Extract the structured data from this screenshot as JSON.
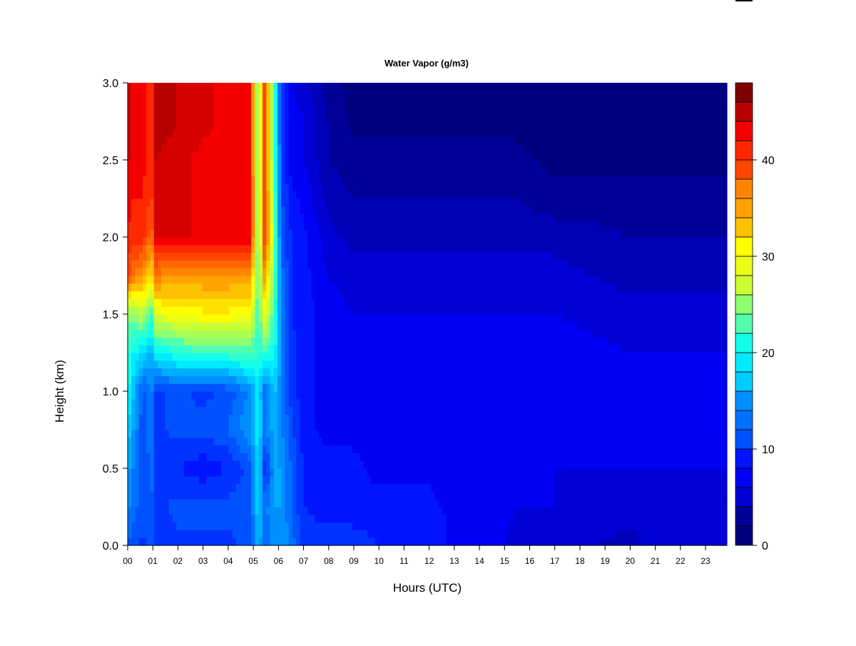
{
  "chart_data": {
    "type": "heatmap",
    "title": "Water Vapor (g/m3)",
    "xlabel": "Hours (UTC)",
    "ylabel": "Height (km)",
    "xlim": [
      0,
      23.85
    ],
    "ylim": [
      0,
      3.0
    ],
    "x_ticks": [
      "00",
      "01",
      "02",
      "03",
      "04",
      "05",
      "06",
      "07",
      "08",
      "09",
      "10",
      "11",
      "12",
      "13",
      "14",
      "15",
      "16",
      "17",
      "18",
      "19",
      "20",
      "21",
      "22",
      "23"
    ],
    "y_ticks": [
      "0.0",
      "0.5",
      "1.0",
      "1.5",
      "2.0",
      "2.5",
      "3.0"
    ],
    "colorbar": {
      "ticks": [
        "0",
        "10",
        "20",
        "30",
        "40"
      ],
      "range": [
        0,
        48
      ],
      "levels": 24,
      "colors": [
        "#00007f",
        "#000099",
        "#0000b8",
        "#0000d6",
        "#0000f5",
        "#0014ff",
        "#0033ff",
        "#0052ff",
        "#0070ff",
        "#008fff",
        "#00adff",
        "#00ccff",
        "#00ebff",
        "#14ffeb",
        "#33ffcc",
        "#52ffad",
        "#8fff70",
        "#adff52",
        "#ccff33",
        "#ebff14",
        "#ffff00",
        "#ffe100",
        "#ffc200",
        "#ffa300",
        "#ff8500",
        "#ff6600",
        "#ff4700",
        "#ff2800",
        "#f50000",
        "#d60000",
        "#b80000",
        "#7f0000"
      ]
    },
    "profiles": [
      {
        "hour": 0.0,
        "values": [
          12,
          14,
          16,
          18,
          20,
          22,
          26,
          40,
          42,
          43,
          44,
          44,
          44
        ]
      },
      {
        "hour": 0.15,
        "values": [
          11,
          13,
          14,
          16,
          18,
          20,
          24,
          38,
          41,
          42,
          43,
          43,
          43
        ]
      },
      {
        "hour": 0.6,
        "values": [
          10,
          11,
          10,
          11,
          11,
          18,
          27,
          36,
          41,
          42,
          43,
          43,
          43
        ]
      },
      {
        "hour": 0.95,
        "values": [
          12,
          12,
          13,
          13,
          14,
          16,
          22,
          32,
          38,
          40,
          40,
          40,
          40
        ]
      },
      {
        "hour": 1.1,
        "values": [
          10,
          10,
          9,
          10,
          10,
          19,
          29,
          37,
          44,
          45,
          45,
          46,
          46
        ]
      },
      {
        "hour": 2.0,
        "values": [
          10,
          11,
          9,
          11,
          11,
          21,
          30,
          36,
          44,
          44,
          44,
          45,
          45
        ]
      },
      {
        "hour": 3.0,
        "values": [
          10,
          11,
          8,
          11,
          10,
          22,
          31,
          36,
          43,
          43,
          43,
          44,
          44
        ]
      },
      {
        "hour": 4.0,
        "values": [
          10,
          11,
          9,
          12,
          11,
          22,
          31,
          36,
          43,
          43,
          43,
          43,
          43
        ]
      },
      {
        "hour": 4.9,
        "values": [
          11,
          12,
          11,
          15,
          14,
          23,
          30,
          36,
          43,
          43,
          42,
          42,
          42
        ]
      },
      {
        "hour": 5.2,
        "values": [
          16,
          18,
          19,
          19,
          19,
          21,
          22,
          22,
          22,
          22,
          22,
          22,
          22
        ]
      },
      {
        "hour": 5.45,
        "values": [
          12,
          13,
          9,
          13,
          12,
          22,
          30,
          36,
          41,
          41,
          40,
          40,
          40
        ]
      },
      {
        "hour": 5.85,
        "values": [
          14,
          15,
          15,
          16,
          17,
          20,
          22,
          23,
          24,
          23,
          22,
          22,
          22
        ]
      },
      {
        "hour": 6.1,
        "values": [
          15,
          15,
          15,
          14,
          14,
          14,
          14,
          13,
          12,
          11,
          11,
          10,
          10
        ]
      },
      {
        "hour": 6.5,
        "values": [
          13,
          12,
          12,
          11,
          10,
          10,
          9,
          9,
          9,
          8,
          7,
          7,
          6
        ]
      },
      {
        "hour": 7.0,
        "values": [
          10,
          9,
          9,
          8,
          8,
          8,
          8,
          8,
          8,
          7,
          6,
          6,
          5
        ]
      },
      {
        "hour": 8.0,
        "values": [
          10,
          8,
          8,
          7,
          7,
          7,
          7,
          6,
          5,
          4,
          3,
          3,
          2
        ]
      },
      {
        "hour": 9.0,
        "values": [
          10,
          8,
          8,
          7,
          7,
          7,
          6,
          5,
          4,
          3,
          2,
          1,
          1
        ]
      },
      {
        "hour": 10.0,
        "values": [
          9,
          8,
          7,
          7,
          7,
          7,
          6,
          5,
          4,
          3,
          2,
          1,
          1
        ]
      },
      {
        "hour": 12.0,
        "values": [
          9,
          8,
          7,
          7,
          7,
          7,
          6,
          5,
          4,
          3,
          2,
          1,
          1
        ]
      },
      {
        "hour": 13.0,
        "values": [
          7,
          7,
          6,
          6,
          7,
          7,
          6,
          5,
          4,
          3,
          2,
          1,
          1
        ]
      },
      {
        "hour": 15.0,
        "values": [
          6,
          7,
          6,
          6,
          7,
          7,
          6,
          5,
          4,
          3,
          2,
          1,
          1
        ]
      },
      {
        "hour": 15.4,
        "values": [
          5,
          6,
          6,
          7,
          7,
          7,
          6,
          5,
          4,
          3,
          2,
          1,
          1
        ]
      },
      {
        "hour": 17.0,
        "values": [
          5,
          6,
          6,
          7,
          7,
          7,
          6,
          5,
          4,
          2,
          1,
          1,
          1
        ]
      },
      {
        "hour": 20.0,
        "values": [
          4,
          5,
          6,
          7,
          7,
          6,
          5,
          4,
          3,
          2,
          1,
          1,
          1
        ]
      },
      {
        "hour": 21.0,
        "values": [
          5,
          5,
          6,
          7,
          7,
          6,
          5,
          4,
          3,
          2,
          1,
          1,
          1
        ]
      },
      {
        "hour": 23.85,
        "values": [
          5,
          6,
          6,
          7,
          7,
          6,
          5,
          4,
          3,
          2,
          1,
          1,
          1
        ]
      }
    ],
    "heights": [
      0.0,
      0.25,
      0.5,
      0.75,
      1.0,
      1.25,
      1.5,
      1.75,
      2.0,
      2.25,
      2.5,
      2.75,
      3.0
    ]
  }
}
